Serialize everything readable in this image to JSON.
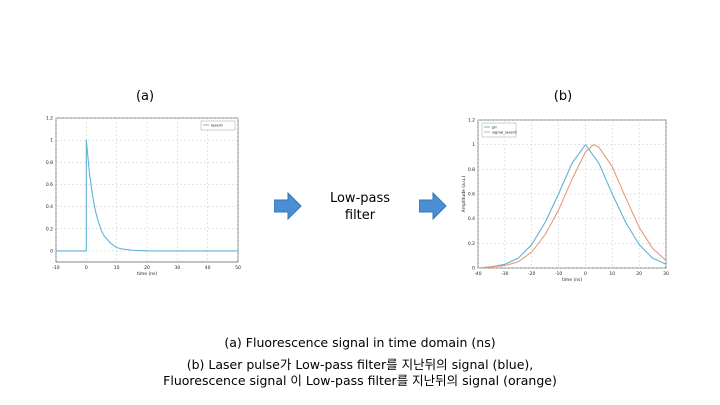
{
  "panels": {
    "a_label": "(a)",
    "b_label": "(b)"
  },
  "filter_block": {
    "line1": "Low-pass",
    "line2": "filter"
  },
  "caption": {
    "line1": "(a) Fluorescence signal in time domain (ns)",
    "line2": "(b) Laser pulse가 Low-pass filter를 지난뒤의 signal (blue),",
    "line3": "Fluorescence signal 이 Low-pass filter를 지난뒤의 signal (orange)"
  },
  "colors": {
    "blue": "#5fb3d3",
    "orange": "#e89a7a",
    "arrow": "#4a8fd6"
  },
  "chart_data": [
    {
      "type": "line",
      "xlabel": "time (ns)",
      "ylabel": "",
      "xlim": [
        -10,
        50
      ],
      "ylim": [
        -0.1,
        1.2
      ],
      "xticks": [
        -10,
        0,
        10,
        20,
        30,
        40,
        50
      ],
      "yticks": [
        0,
        0.2,
        0.4,
        0.6,
        0.8,
        1,
        1.2
      ],
      "xtick_labels": [
        "-10",
        "0",
        "10",
        "20",
        "30",
        "40",
        "50"
      ],
      "ytick_labels": [
        "0",
        "0.2",
        "0.4",
        "0.6",
        "0.8",
        "1",
        "1.2"
      ],
      "grid": true,
      "legend": "top-right",
      "series": [
        {
          "name": "laser0",
          "color": "#5fb3d3",
          "x": [
            -10,
            -0.01,
            0,
            1,
            2,
            3,
            4,
            5,
            6,
            8,
            10,
            12,
            15,
            20,
            25,
            30,
            40,
            50
          ],
          "y": [
            0,
            0,
            1,
            0.71,
            0.51,
            0.36,
            0.26,
            0.18,
            0.13,
            0.07,
            0.03,
            0.017,
            0.006,
            0.001,
            0,
            0,
            0,
            0
          ]
        }
      ]
    },
    {
      "type": "line",
      "xlabel": "time (ns)",
      "ylabel": "Amplitude (a.u.)",
      "xlim": [
        -40,
        30
      ],
      "ylim": [
        0,
        1.2
      ],
      "xticks": [
        -40,
        -30,
        -20,
        -10,
        0,
        10,
        20,
        30
      ],
      "yticks": [
        0,
        0.2,
        0.4,
        0.6,
        0.8,
        1,
        1.2
      ],
      "xtick_labels": [
        "-40",
        "-30",
        "-20",
        "-10",
        "0",
        "10",
        "20",
        "30"
      ],
      "ytick_labels": [
        "0",
        "0.2",
        "0.4",
        "0.6",
        "0.8",
        "1",
        "1.2"
      ],
      "grid": true,
      "legend": "top-left",
      "series": [
        {
          "name": "pll",
          "color": "#5fb3d3",
          "x": [
            -40,
            -35,
            -30,
            -25,
            -20,
            -15,
            -10,
            -5,
            0,
            5,
            10,
            15,
            20,
            25,
            30
          ],
          "y": [
            0.0,
            0.01,
            0.03,
            0.08,
            0.19,
            0.37,
            0.6,
            0.85,
            1.0,
            0.85,
            0.6,
            0.37,
            0.19,
            0.08,
            0.03
          ]
        },
        {
          "name": "signal_laser0",
          "color": "#e89a7a",
          "x": [
            -40,
            -35,
            -30,
            -25,
            -20,
            -15,
            -10,
            -5,
            0,
            3,
            5,
            10,
            15,
            20,
            25,
            30
          ],
          "y": [
            0.0,
            0.01,
            0.02,
            0.05,
            0.13,
            0.27,
            0.47,
            0.72,
            0.94,
            1.0,
            0.98,
            0.82,
            0.57,
            0.33,
            0.16,
            0.06
          ]
        }
      ]
    }
  ]
}
